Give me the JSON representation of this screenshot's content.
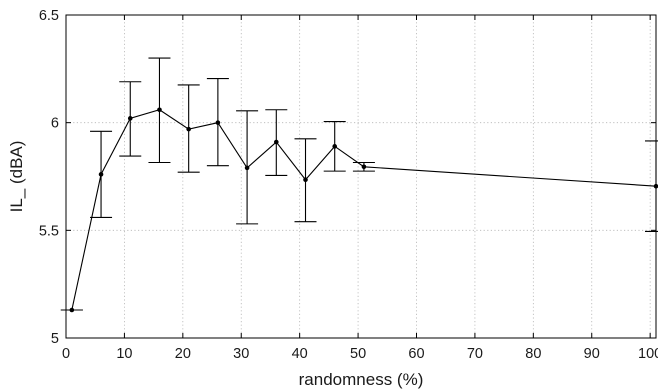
{
  "chart_data": {
    "type": "line",
    "title": "",
    "xlabel": "randomness (%)",
    "ylabel": "IL_ (dBA)",
    "xlim": [
      0,
      101
    ],
    "ylim": [
      5,
      6.5
    ],
    "x_ticks": [
      0,
      10,
      20,
      30,
      40,
      50,
      60,
      70,
      80,
      90,
      100
    ],
    "x_tick_labels": [
      "0",
      "10",
      "20",
      "30",
      "40",
      "50",
      "60",
      "70",
      "80",
      "90",
      "100"
    ],
    "y_ticks": [
      5,
      5.5,
      6,
      6.5
    ],
    "y_tick_labels": [
      "5",
      "5.5",
      "6",
      "6.5"
    ],
    "grid": true,
    "series": [
      {
        "x": [
          1,
          6,
          11,
          16,
          21,
          26,
          31,
          36,
          41,
          46,
          51,
          101
        ],
        "y": [
          5.13,
          5.76,
          6.02,
          6.06,
          5.97,
          6.0,
          5.79,
          5.91,
          5.735,
          5.89,
          5.795,
          5.705
        ],
        "err_low": [
          5.13,
          5.56,
          5.845,
          5.815,
          5.77,
          5.8,
          5.53,
          5.755,
          5.54,
          5.775,
          5.775,
          5.495
        ],
        "err_high": [
          5.13,
          5.96,
          6.19,
          6.3,
          6.175,
          6.205,
          6.055,
          6.06,
          5.925,
          6.005,
          5.815,
          5.915
        ]
      }
    ]
  }
}
